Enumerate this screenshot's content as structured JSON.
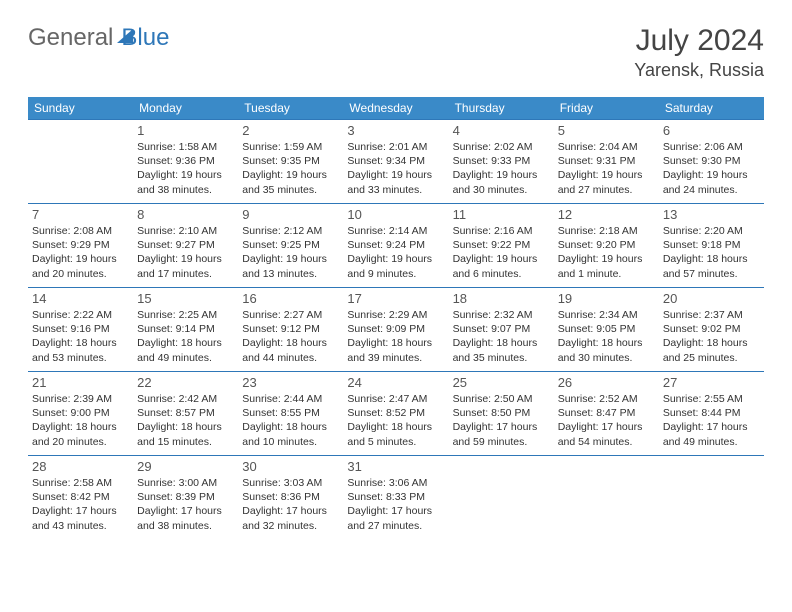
{
  "logo": {
    "part1": "General",
    "part2": "Blue"
  },
  "title": "July 2024",
  "location": "Yarensk, Russia",
  "colors": {
    "header_bg": "#3a8ac8",
    "header_text": "#ffffff",
    "border": "#2e77b8",
    "text": "#333333",
    "daynum": "#555555",
    "logo_gray": "#666666",
    "logo_blue": "#2e77b8",
    "bg": "#ffffff"
  },
  "fonts": {
    "title_size": 30,
    "location_size": 18,
    "dayheader_size": 12,
    "daynum_size": 13,
    "body_size": 10.5,
    "family": "Arial"
  },
  "day_headers": [
    "Sunday",
    "Monday",
    "Tuesday",
    "Wednesday",
    "Thursday",
    "Friday",
    "Saturday"
  ],
  "weeks": [
    [
      null,
      {
        "n": "1",
        "sr": "Sunrise: 1:58 AM",
        "ss": "Sunset: 9:36 PM",
        "dl": "Daylight: 19 hours and 38 minutes."
      },
      {
        "n": "2",
        "sr": "Sunrise: 1:59 AM",
        "ss": "Sunset: 9:35 PM",
        "dl": "Daylight: 19 hours and 35 minutes."
      },
      {
        "n": "3",
        "sr": "Sunrise: 2:01 AM",
        "ss": "Sunset: 9:34 PM",
        "dl": "Daylight: 19 hours and 33 minutes."
      },
      {
        "n": "4",
        "sr": "Sunrise: 2:02 AM",
        "ss": "Sunset: 9:33 PM",
        "dl": "Daylight: 19 hours and 30 minutes."
      },
      {
        "n": "5",
        "sr": "Sunrise: 2:04 AM",
        "ss": "Sunset: 9:31 PM",
        "dl": "Daylight: 19 hours and 27 minutes."
      },
      {
        "n": "6",
        "sr": "Sunrise: 2:06 AM",
        "ss": "Sunset: 9:30 PM",
        "dl": "Daylight: 19 hours and 24 minutes."
      }
    ],
    [
      {
        "n": "7",
        "sr": "Sunrise: 2:08 AM",
        "ss": "Sunset: 9:29 PM",
        "dl": "Daylight: 19 hours and 20 minutes."
      },
      {
        "n": "8",
        "sr": "Sunrise: 2:10 AM",
        "ss": "Sunset: 9:27 PM",
        "dl": "Daylight: 19 hours and 17 minutes."
      },
      {
        "n": "9",
        "sr": "Sunrise: 2:12 AM",
        "ss": "Sunset: 9:25 PM",
        "dl": "Daylight: 19 hours and 13 minutes."
      },
      {
        "n": "10",
        "sr": "Sunrise: 2:14 AM",
        "ss": "Sunset: 9:24 PM",
        "dl": "Daylight: 19 hours and 9 minutes."
      },
      {
        "n": "11",
        "sr": "Sunrise: 2:16 AM",
        "ss": "Sunset: 9:22 PM",
        "dl": "Daylight: 19 hours and 6 minutes."
      },
      {
        "n": "12",
        "sr": "Sunrise: 2:18 AM",
        "ss": "Sunset: 9:20 PM",
        "dl": "Daylight: 19 hours and 1 minute."
      },
      {
        "n": "13",
        "sr": "Sunrise: 2:20 AM",
        "ss": "Sunset: 9:18 PM",
        "dl": "Daylight: 18 hours and 57 minutes."
      }
    ],
    [
      {
        "n": "14",
        "sr": "Sunrise: 2:22 AM",
        "ss": "Sunset: 9:16 PM",
        "dl": "Daylight: 18 hours and 53 minutes."
      },
      {
        "n": "15",
        "sr": "Sunrise: 2:25 AM",
        "ss": "Sunset: 9:14 PM",
        "dl": "Daylight: 18 hours and 49 minutes."
      },
      {
        "n": "16",
        "sr": "Sunrise: 2:27 AM",
        "ss": "Sunset: 9:12 PM",
        "dl": "Daylight: 18 hours and 44 minutes."
      },
      {
        "n": "17",
        "sr": "Sunrise: 2:29 AM",
        "ss": "Sunset: 9:09 PM",
        "dl": "Daylight: 18 hours and 39 minutes."
      },
      {
        "n": "18",
        "sr": "Sunrise: 2:32 AM",
        "ss": "Sunset: 9:07 PM",
        "dl": "Daylight: 18 hours and 35 minutes."
      },
      {
        "n": "19",
        "sr": "Sunrise: 2:34 AM",
        "ss": "Sunset: 9:05 PM",
        "dl": "Daylight: 18 hours and 30 minutes."
      },
      {
        "n": "20",
        "sr": "Sunrise: 2:37 AM",
        "ss": "Sunset: 9:02 PM",
        "dl": "Daylight: 18 hours and 25 minutes."
      }
    ],
    [
      {
        "n": "21",
        "sr": "Sunrise: 2:39 AM",
        "ss": "Sunset: 9:00 PM",
        "dl": "Daylight: 18 hours and 20 minutes."
      },
      {
        "n": "22",
        "sr": "Sunrise: 2:42 AM",
        "ss": "Sunset: 8:57 PM",
        "dl": "Daylight: 18 hours and 15 minutes."
      },
      {
        "n": "23",
        "sr": "Sunrise: 2:44 AM",
        "ss": "Sunset: 8:55 PM",
        "dl": "Daylight: 18 hours and 10 minutes."
      },
      {
        "n": "24",
        "sr": "Sunrise: 2:47 AM",
        "ss": "Sunset: 8:52 PM",
        "dl": "Daylight: 18 hours and 5 minutes."
      },
      {
        "n": "25",
        "sr": "Sunrise: 2:50 AM",
        "ss": "Sunset: 8:50 PM",
        "dl": "Daylight: 17 hours and 59 minutes."
      },
      {
        "n": "26",
        "sr": "Sunrise: 2:52 AM",
        "ss": "Sunset: 8:47 PM",
        "dl": "Daylight: 17 hours and 54 minutes."
      },
      {
        "n": "27",
        "sr": "Sunrise: 2:55 AM",
        "ss": "Sunset: 8:44 PM",
        "dl": "Daylight: 17 hours and 49 minutes."
      }
    ],
    [
      {
        "n": "28",
        "sr": "Sunrise: 2:58 AM",
        "ss": "Sunset: 8:42 PM",
        "dl": "Daylight: 17 hours and 43 minutes."
      },
      {
        "n": "29",
        "sr": "Sunrise: 3:00 AM",
        "ss": "Sunset: 8:39 PM",
        "dl": "Daylight: 17 hours and 38 minutes."
      },
      {
        "n": "30",
        "sr": "Sunrise: 3:03 AM",
        "ss": "Sunset: 8:36 PM",
        "dl": "Daylight: 17 hours and 32 minutes."
      },
      {
        "n": "31",
        "sr": "Sunrise: 3:06 AM",
        "ss": "Sunset: 8:33 PM",
        "dl": "Daylight: 17 hours and 27 minutes."
      },
      null,
      null,
      null
    ]
  ]
}
